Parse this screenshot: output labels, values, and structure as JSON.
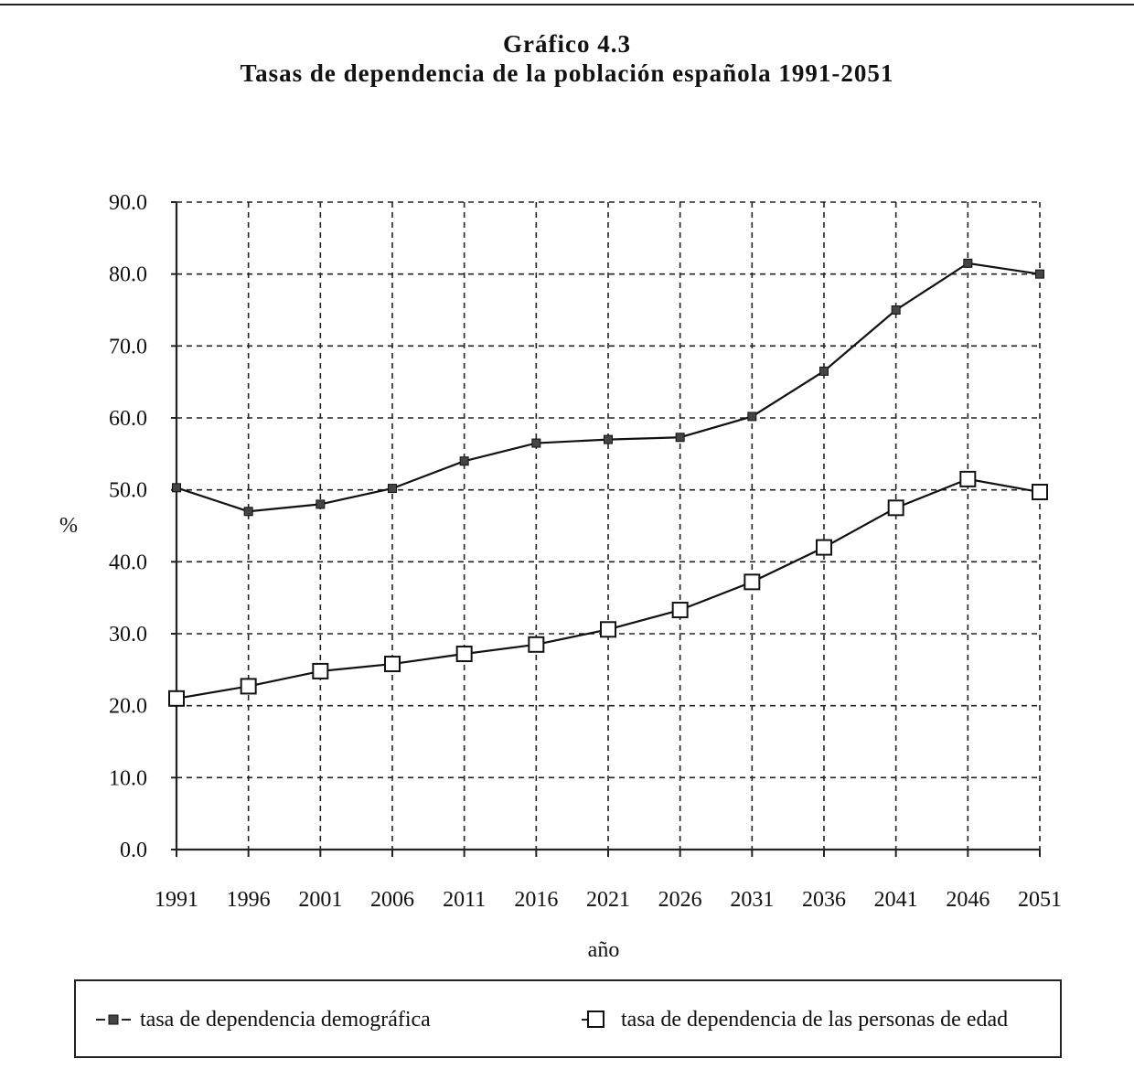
{
  "chart_data": {
    "type": "line",
    "title": "Gráfico 4.3",
    "subtitle": "Tasas de dependencia de la población española 1991-2051",
    "xlabel": "año",
    "ylabel": "%",
    "x": [
      "1991",
      "1996",
      "2001",
      "2006",
      "2011",
      "2016",
      "2021",
      "2026",
      "2031",
      "2036",
      "2041",
      "2046",
      "2051"
    ],
    "ylim": [
      0,
      90
    ],
    "yticks": [
      "0.0",
      "10.0",
      "20.0",
      "30.0",
      "40.0",
      "50.0",
      "60.0",
      "70.0",
      "80.0",
      "90.0"
    ],
    "grid": true,
    "legend_position": "bottom",
    "series": [
      {
        "name": "tasa de dependencia demográfica",
        "marker": "small-filled-square",
        "values": [
          50.3,
          47.0,
          48.0,
          50.2,
          54.0,
          56.5,
          57.0,
          57.3,
          60.2,
          66.5,
          75.0,
          81.5,
          80.0
        ]
      },
      {
        "name": "tasa de dependencia de las personas de edad",
        "marker": "open-square",
        "values": [
          21.0,
          22.7,
          24.8,
          25.8,
          27.2,
          28.5,
          30.6,
          33.3,
          37.2,
          42.0,
          47.5,
          51.5,
          49.7
        ]
      }
    ]
  }
}
